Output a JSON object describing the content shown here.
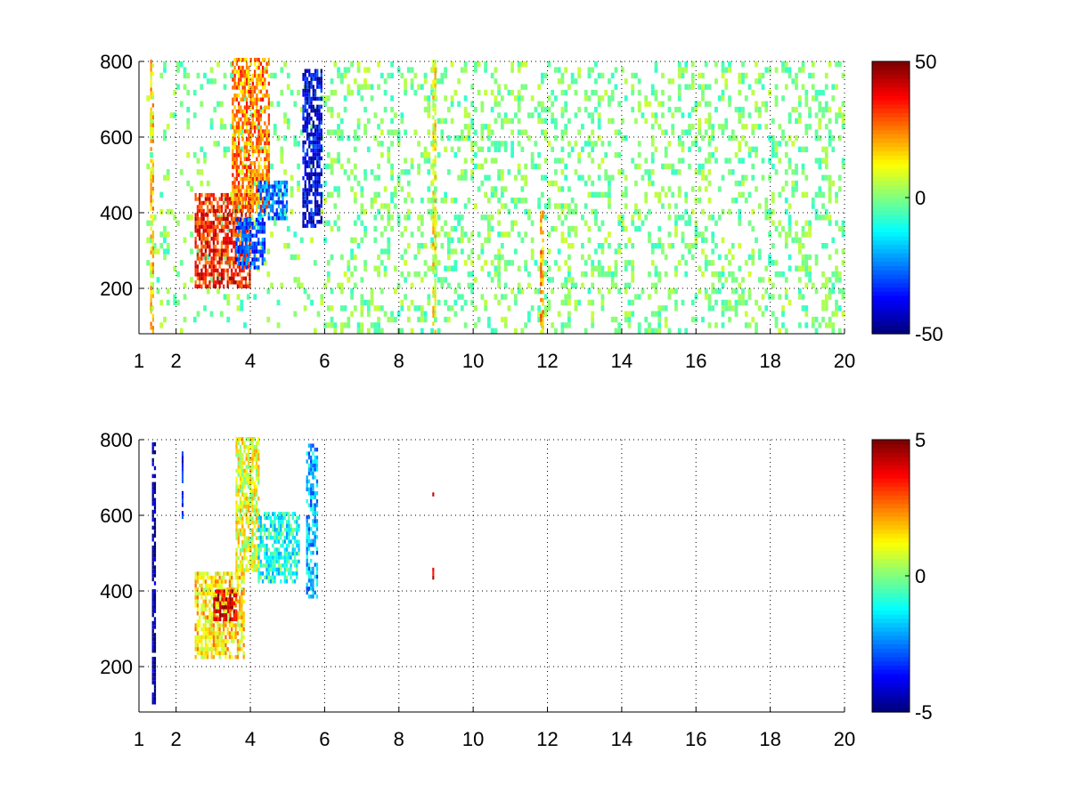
{
  "chart_data": [
    {
      "type": "heatmap",
      "title": "",
      "xlabel": "",
      "ylabel": "",
      "xlim": [
        1,
        20
      ],
      "ylim": [
        80,
        800
      ],
      "x_ticks": [
        1,
        2,
        4,
        6,
        8,
        10,
        12,
        14,
        16,
        18,
        20
      ],
      "x_tick_labels": [
        "1",
        "2",
        "4",
        "6",
        "8",
        "10",
        "12",
        "14",
        "16",
        "18",
        "20"
      ],
      "y_ticks": [
        200,
        400,
        600,
        800
      ],
      "y_tick_labels": [
        "200",
        "400",
        "600",
        "800"
      ],
      "grid": true,
      "colormap": "jet",
      "clim": [
        -50,
        50
      ],
      "colorbar_ticks": [
        -50,
        0,
        50
      ],
      "colorbar_tick_labels": [
        "-50",
        "0",
        "50"
      ],
      "features": [
        {
          "x_range": [
            2.5,
            4.0
          ],
          "y_range": [
            200,
            450
          ],
          "value": 35
        },
        {
          "x_range": [
            3.5,
            4.5
          ],
          "y_range": [
            400,
            800
          ],
          "value": 25
        },
        {
          "x_range": [
            3.6,
            4.4
          ],
          "y_range": [
            250,
            380
          ],
          "value": -30
        },
        {
          "x_range": [
            4.2,
            5.0
          ],
          "y_range": [
            380,
            480
          ],
          "value": -25
        },
        {
          "x_range": [
            5.4,
            5.9
          ],
          "y_range": [
            360,
            780
          ],
          "value": -40
        },
        {
          "x_range": [
            1.3,
            1.4
          ],
          "y_range": [
            80,
            800
          ],
          "value": 15
        },
        {
          "x_range": [
            8.9,
            9.0
          ],
          "y_range": [
            80,
            800
          ],
          "value": 12
        },
        {
          "x_range": [
            11.8,
            11.9
          ],
          "y_range": [
            80,
            400
          ],
          "value": 20
        }
      ],
      "background_noise": {
        "x_range": [
          6,
          20
        ],
        "value_range": [
          -8,
          8
        ],
        "density": 0.25
      }
    },
    {
      "type": "heatmap",
      "title": "",
      "xlabel": "",
      "ylabel": "",
      "xlim": [
        1,
        20
      ],
      "ylim": [
        80,
        800
      ],
      "x_ticks": [
        1,
        2,
        4,
        6,
        8,
        10,
        12,
        14,
        16,
        18,
        20
      ],
      "x_tick_labels": [
        "1",
        "2",
        "4",
        "6",
        "8",
        "10",
        "12",
        "14",
        "16",
        "18",
        "20"
      ],
      "y_ticks": [
        200,
        400,
        600,
        800
      ],
      "y_tick_labels": [
        "200",
        "400",
        "600",
        "800"
      ],
      "grid": true,
      "colormap": "jet",
      "clim": [
        -5,
        5
      ],
      "colorbar_ticks": [
        -5,
        0,
        5
      ],
      "colorbar_tick_labels": [
        "-5",
        "0",
        "5"
      ],
      "features": [
        {
          "x_range": [
            2.5,
            3.8
          ],
          "y_range": [
            220,
            450
          ],
          "value": 1.5
        },
        {
          "x_range": [
            3.0,
            3.6
          ],
          "y_range": [
            320,
            400
          ],
          "value": 4
        },
        {
          "x_range": [
            3.6,
            4.2
          ],
          "y_range": [
            450,
            800
          ],
          "value": 1
        },
        {
          "x_range": [
            4.2,
            5.3
          ],
          "y_range": [
            420,
            600
          ],
          "value": -1
        },
        {
          "x_range": [
            5.5,
            5.8
          ],
          "y_range": [
            380,
            780
          ],
          "value": -2
        },
        {
          "x_range": [
            1.35,
            1.42
          ],
          "y_range": [
            100,
            790
          ],
          "value": -5
        },
        {
          "x_range": [
            2.15,
            2.2
          ],
          "y_range": [
            580,
            760
          ],
          "value": -4
        },
        {
          "x_range": [
            8.9,
            8.95
          ],
          "y_range": [
            650,
            680
          ],
          "value": 4
        },
        {
          "x_range": [
            8.9,
            8.95
          ],
          "y_range": [
            430,
            460
          ],
          "value": 4
        }
      ]
    }
  ]
}
